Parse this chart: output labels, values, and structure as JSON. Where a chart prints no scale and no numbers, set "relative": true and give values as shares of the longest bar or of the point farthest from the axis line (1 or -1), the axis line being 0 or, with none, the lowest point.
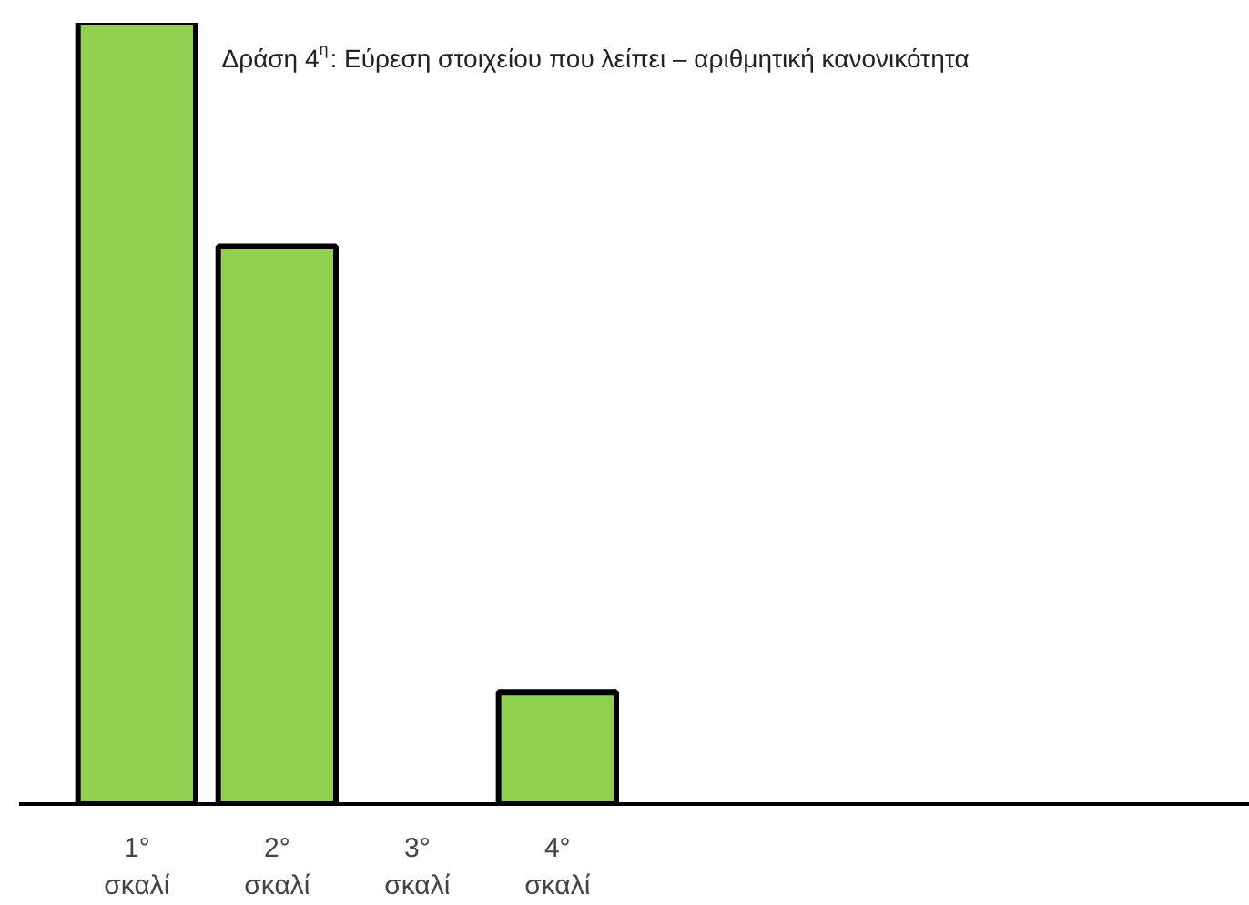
{
  "chart_data": {
    "type": "bar",
    "relative": true,
    "title": "Δράση 4$^{η}$: Εύρεση στοιχείου που λείπει – αριθμητική κανονικότητα",
    "categories": [
      "1°\nσκαλί",
      "2°\nσκαλί",
      "3°\nσκαλί",
      "4°\nσκαλί"
    ],
    "series": [
      {
        "color": "#92d050",
        "values": [
          1,
          0.714,
          null,
          0.143
        ]
      }
    ],
    "grid": false
  }
}
